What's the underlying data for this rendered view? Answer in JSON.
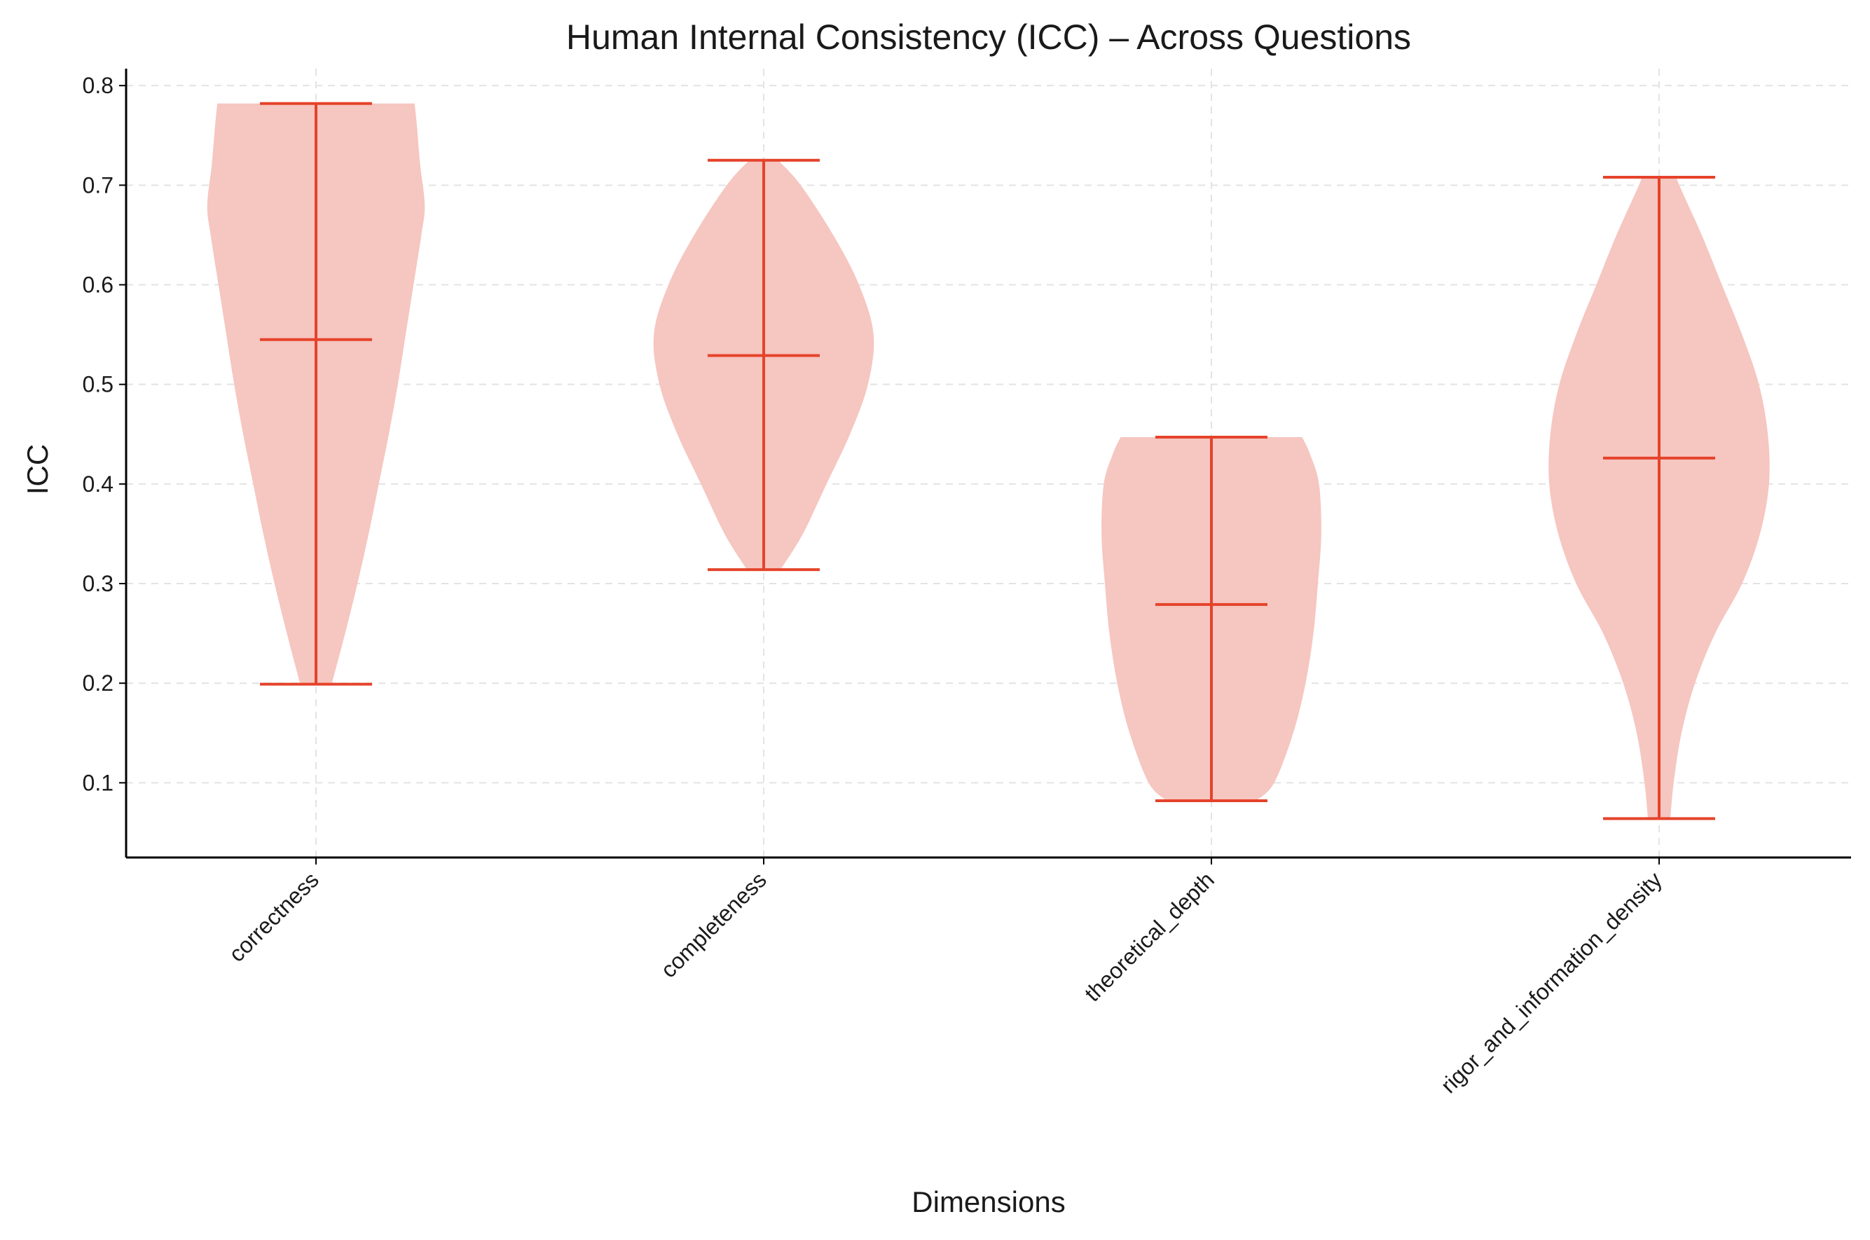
{
  "chart_data": {
    "type": "violin",
    "title": "Human Internal Consistency (ICC) – Across Questions",
    "xlabel": "Dimensions",
    "ylabel": "ICC",
    "ylim": [
      0.025,
      0.817
    ],
    "yticks": [
      "0.1",
      "0.2",
      "0.3",
      "0.4",
      "0.5",
      "0.6",
      "0.7",
      "0.8"
    ],
    "grid": true,
    "legend": "none",
    "colors": {
      "fill": "#f6c6c0",
      "line": "#e5432b",
      "grid": "#e3e3e3",
      "axis": "#000000"
    },
    "categories": [
      "correctness",
      "completeness",
      "theoretical_depth",
      "rigor_and_information_density"
    ],
    "series": [
      {
        "category": "correctness",
        "min": 0.199,
        "mean": 0.545,
        "max": 0.782,
        "density": [
          [
            0.199,
            0.14
          ],
          [
            0.25,
            0.26
          ],
          [
            0.3,
            0.37
          ],
          [
            0.35,
            0.47
          ],
          [
            0.4,
            0.56
          ],
          [
            0.45,
            0.65
          ],
          [
            0.5,
            0.73
          ],
          [
            0.55,
            0.8
          ],
          [
            0.6,
            0.87
          ],
          [
            0.65,
            0.94
          ],
          [
            0.68,
            0.97
          ],
          [
            0.72,
            0.93
          ],
          [
            0.76,
            0.9
          ],
          [
            0.782,
            0.88
          ]
        ]
      },
      {
        "category": "completeness",
        "min": 0.314,
        "mean": 0.529,
        "max": 0.725,
        "density": [
          [
            0.314,
            0.15
          ],
          [
            0.35,
            0.35
          ],
          [
            0.4,
            0.56
          ],
          [
            0.45,
            0.77
          ],
          [
            0.5,
            0.93
          ],
          [
            0.55,
            0.98
          ],
          [
            0.6,
            0.85
          ],
          [
            0.65,
            0.62
          ],
          [
            0.7,
            0.33
          ],
          [
            0.725,
            0.13
          ]
        ]
      },
      {
        "category": "theoretical_depth",
        "min": 0.082,
        "mean": 0.279,
        "max": 0.447,
        "density": [
          [
            0.082,
            0.4
          ],
          [
            0.1,
            0.56
          ],
          [
            0.15,
            0.73
          ],
          [
            0.2,
            0.84
          ],
          [
            0.25,
            0.91
          ],
          [
            0.3,
            0.95
          ],
          [
            0.35,
            0.98
          ],
          [
            0.4,
            0.96
          ],
          [
            0.43,
            0.88
          ],
          [
            0.447,
            0.81
          ]
        ]
      },
      {
        "category": "rigor_and_information_density",
        "min": 0.064,
        "mean": 0.426,
        "max": 0.708,
        "density": [
          [
            0.064,
            0.1
          ],
          [
            0.1,
            0.13
          ],
          [
            0.15,
            0.2
          ],
          [
            0.2,
            0.32
          ],
          [
            0.25,
            0.5
          ],
          [
            0.3,
            0.74
          ],
          [
            0.35,
            0.9
          ],
          [
            0.4,
            0.98
          ],
          [
            0.45,
            0.97
          ],
          [
            0.5,
            0.89
          ],
          [
            0.55,
            0.74
          ],
          [
            0.6,
            0.56
          ],
          [
            0.65,
            0.38
          ],
          [
            0.7,
            0.18
          ],
          [
            0.708,
            0.16
          ]
        ]
      }
    ]
  }
}
